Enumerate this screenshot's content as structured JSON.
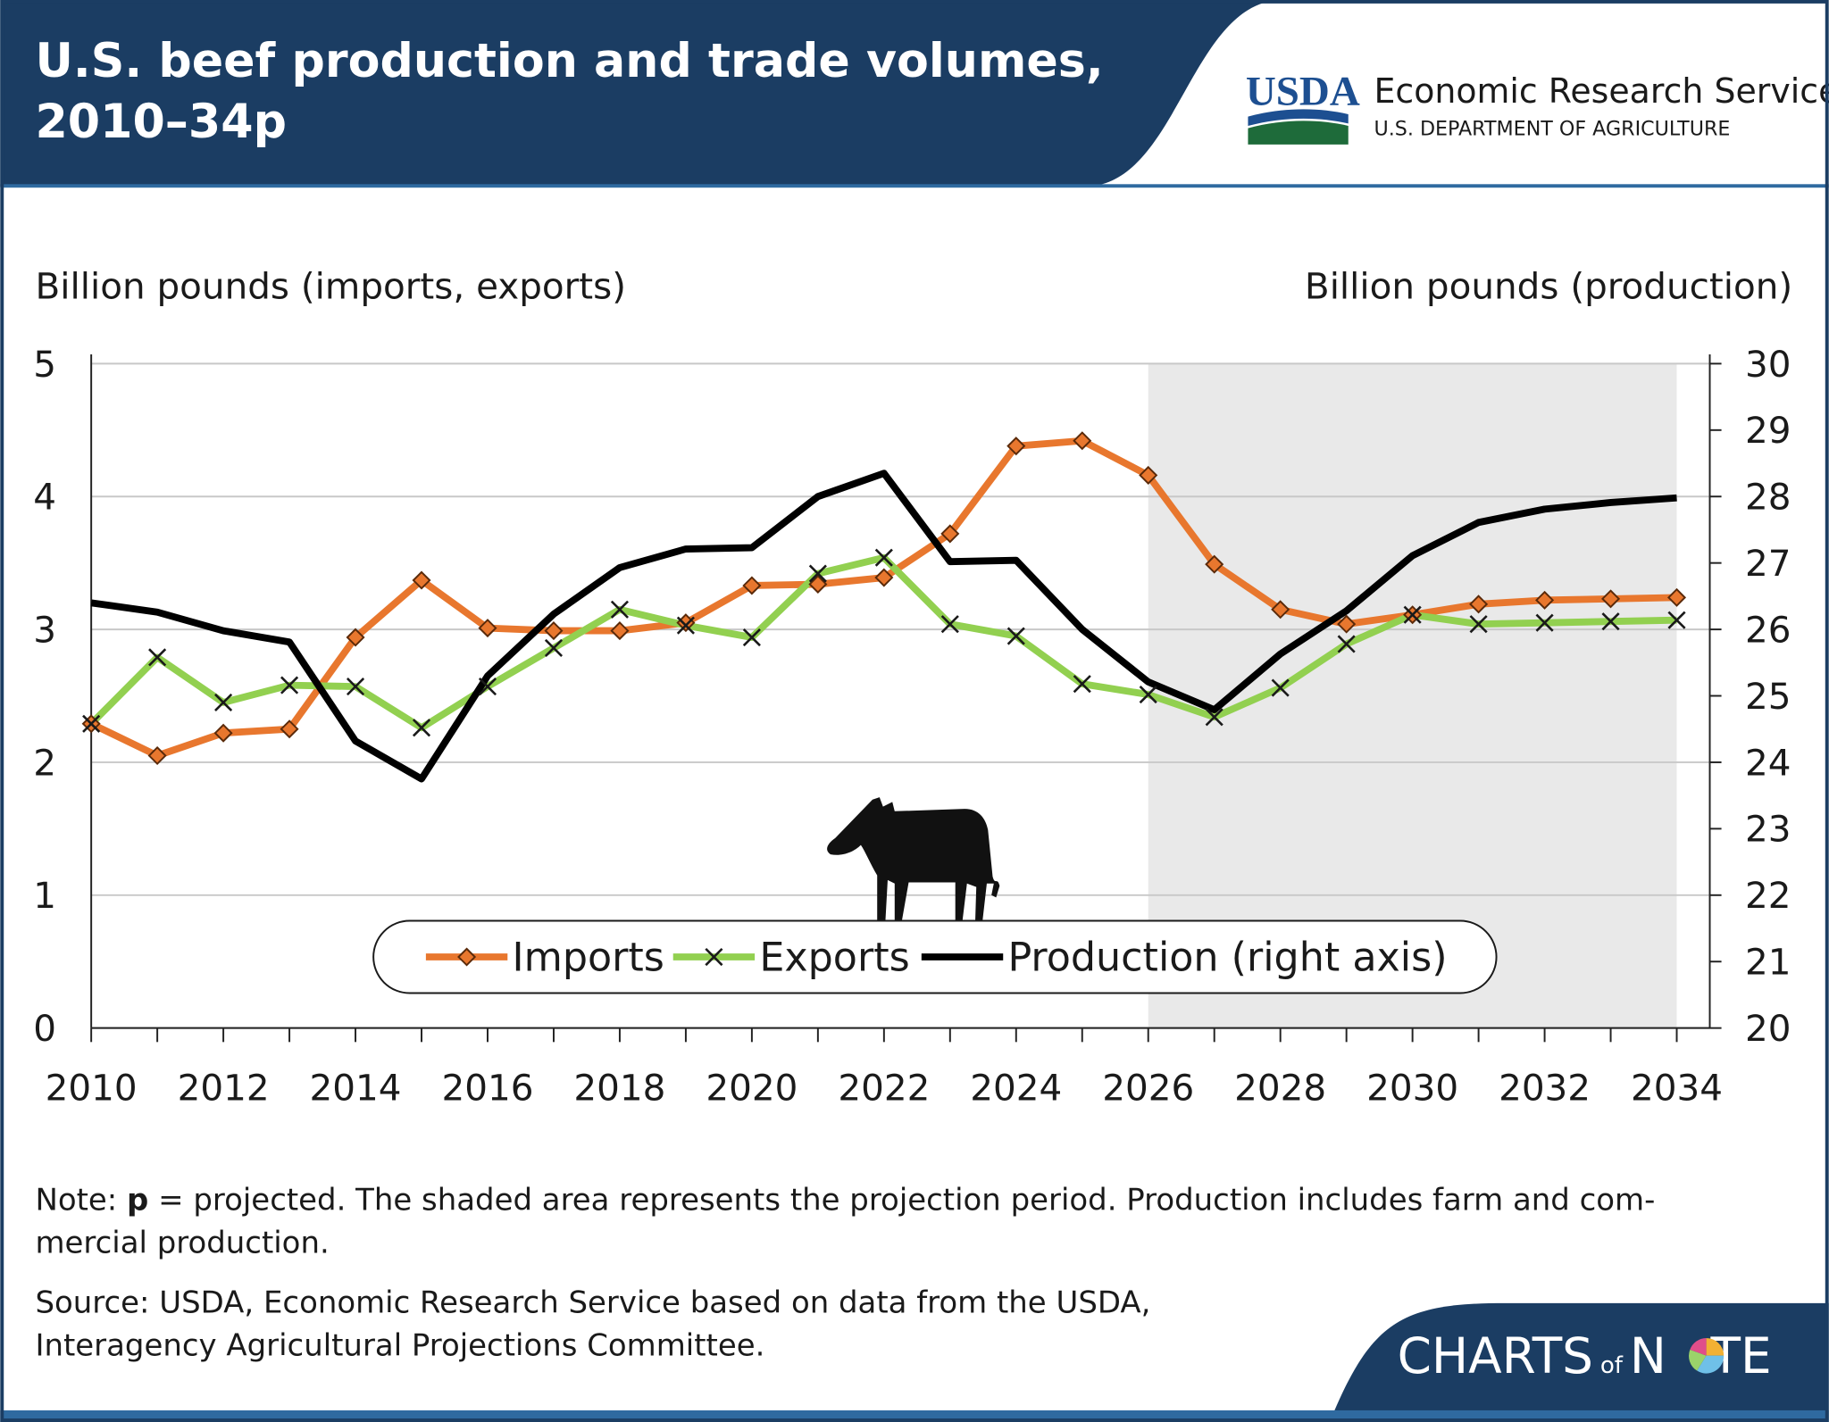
{
  "header": {
    "title": [
      "U.S. beef production and trade volumes,",
      "2010–34p"
    ],
    "logo": "USDA",
    "agency": "Economic Research Service",
    "department": "U.S. DEPARTMENT OF AGRICULTURE"
  },
  "chart_data": {
    "type": "line",
    "y_label": "Billion pounds (imports, exports)",
    "y2_label": "Billion pounds (production)",
    "x": [
      2010,
      2011,
      2012,
      2013,
      2014,
      2015,
      2016,
      2017,
      2018,
      2019,
      2020,
      2021,
      2022,
      2023,
      2024,
      2025,
      2026,
      2027,
      2028,
      2029,
      2030,
      2031,
      2032,
      2033,
      2034
    ],
    "xlim": [
      2010,
      2034.5
    ],
    "xticks": [
      2010,
      2012,
      2014,
      2016,
      2018,
      2020,
      2022,
      2024,
      2026,
      2028,
      2030,
      2032,
      2034
    ],
    "ylim": [
      0,
      5
    ],
    "yticks": [
      0,
      1,
      2,
      3,
      4,
      5
    ],
    "y2lim": [
      20,
      30
    ],
    "y2ticks": [
      20,
      21,
      22,
      23,
      24,
      25,
      26,
      27,
      28,
      29,
      30
    ],
    "grid": true,
    "shade": [
      2026,
      2034
    ],
    "series": [
      {
        "name": "Imports",
        "color": "#e8772e",
        "marker": "diamond",
        "values": [
          2.29,
          2.05,
          2.22,
          2.25,
          2.94,
          3.37,
          3.01,
          2.99,
          2.99,
          3.05,
          3.33,
          3.34,
          3.39,
          3.72,
          4.38,
          4.42,
          4.16,
          3.49,
          3.15,
          3.04,
          3.11,
          3.19,
          3.22,
          3.23,
          3.24
        ]
      },
      {
        "name": "Exports",
        "color": "#92d050",
        "marker": "x",
        "values": [
          2.29,
          2.79,
          2.45,
          2.58,
          2.57,
          2.26,
          2.57,
          2.86,
          3.15,
          3.03,
          2.94,
          3.42,
          3.54,
          3.04,
          2.95,
          2.59,
          2.51,
          2.34,
          2.56,
          2.89,
          3.11,
          3.04,
          3.05,
          3.06,
          3.07
        ]
      },
      {
        "name": "Production (right axis)",
        "color": "#000000",
        "axis": "y2",
        "values": [
          26.4,
          26.26,
          25.98,
          25.81,
          24.32,
          23.75,
          25.3,
          26.23,
          26.93,
          27.21,
          27.23,
          28.0,
          28.35,
          27.02,
          27.04,
          26.0,
          25.21,
          24.79,
          25.63,
          26.28,
          27.11,
          27.61,
          27.81,
          27.91,
          27.98
        ]
      }
    ]
  },
  "footer": {
    "note": {
      "label": "Note:",
      "term": "p",
      "text": [
        "= projected. The shaded area represents the projection period. Production includes farm and com-",
        "mercial production."
      ]
    },
    "source": [
      "Source: USDA, Economic Research Service based on data from the USDA,",
      "Interagency Agricultural Projections Committee."
    ],
    "brand": [
      "CHARTS",
      "of",
      "N",
      "TE"
    ]
  }
}
